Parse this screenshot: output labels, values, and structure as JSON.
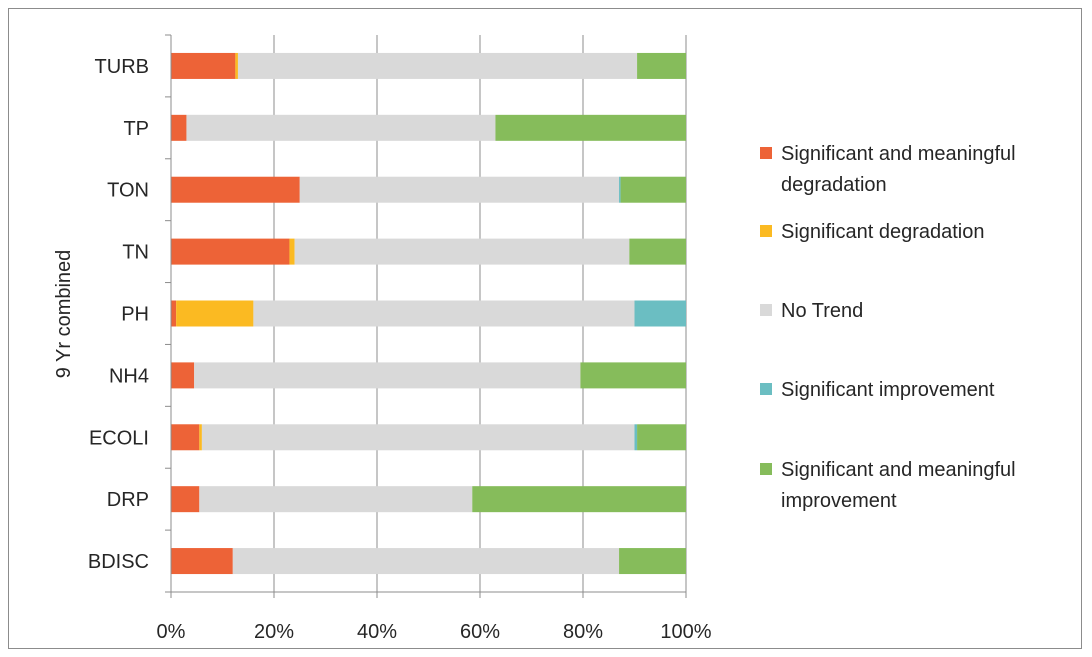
{
  "chart_data": {
    "type": "bar",
    "stacked": true,
    "percent_stacked": true,
    "orientation": "horizontal",
    "categories": [
      "TURB",
      "TP",
      "TON",
      "TN",
      "PH",
      "NH4",
      "ECOLI",
      "DRP",
      "BDISC"
    ],
    "ylabel": "9 Yr combined",
    "xlabel": "",
    "xlim": [
      0,
      100
    ],
    "x_ticks": [
      "0%",
      "20%",
      "40%",
      "60%",
      "80%",
      "100%"
    ],
    "x_tick_values": [
      0,
      20,
      40,
      60,
      80,
      100
    ],
    "grid": "vertical",
    "legend_position": "right",
    "series": [
      {
        "name": "Significant and meaningful degradation",
        "color": "#ED6337",
        "values": [
          12.5,
          3,
          25,
          23,
          1,
          4.5,
          5.5,
          5.5,
          12
        ]
      },
      {
        "name": "Significant degradation",
        "color": "#FBBA22",
        "values": [
          0.5,
          0,
          0,
          1,
          15,
          0,
          0.5,
          0,
          0
        ]
      },
      {
        "name": "No Trend",
        "color": "#D9D9D9",
        "values": [
          77.5,
          60,
          62,
          65,
          74,
          75,
          84,
          53,
          75
        ]
      },
      {
        "name": "Significant improvement",
        "color": "#6BBEC2",
        "values": [
          0,
          0,
          0.3,
          0,
          10,
          0,
          0.5,
          0,
          0
        ]
      },
      {
        "name": "Significant and meaningful improvement",
        "color": "#86BC5B",
        "values": [
          9.5,
          37,
          12.7,
          11,
          0,
          20.5,
          9.5,
          41.5,
          13
        ]
      }
    ]
  }
}
